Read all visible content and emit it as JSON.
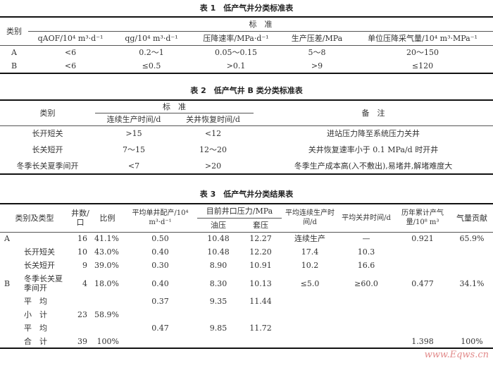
{
  "table1": {
    "title": "表 1　低产气井分类标准表",
    "category_header": "类别",
    "group_header": "标　准",
    "columns": [
      "qAOF/10⁴ m³·d⁻¹",
      "qg/10⁴ m³·d⁻¹",
      "压降速率/MPa·d⁻¹",
      "生产压差/MPa",
      "单位压降采气量/10⁴ m³·MPa⁻¹"
    ],
    "rows": [
      [
        "A",
        "<6",
        "0.2～1",
        "0.05～0.15",
        "5～8",
        "20～150"
      ],
      [
        "B",
        "<6",
        "≤0.5",
        ">0.1",
        ">9",
        "≤120"
      ]
    ]
  },
  "table2": {
    "title": "表 2　低产气井 B 类分类标准表",
    "category_header": "类别",
    "group_header": "标　准",
    "columns": [
      "连续生产时间/d",
      "关井恢复时间/d"
    ],
    "remark_header": "备　注",
    "rows": [
      [
        "长开短关",
        ">15",
        "<12",
        "进站压力降至系统压力关井"
      ],
      [
        "长关短开",
        "7～15",
        "12～20",
        "关井恢复速率小于 0.1 MPa/d 时开井"
      ],
      [
        "冬季长关夏季间开",
        "<7",
        ">20",
        "冬季生产成本高(入不敷出),易堵井,解堵难度大"
      ]
    ]
  },
  "table3": {
    "title": "表 3　低产气井分类结果表",
    "headers": {
      "type": "类别及类型",
      "count": "井数/口",
      "ratio": "比例",
      "avg_alloc": "平均单井配产/10⁴ m³·d⁻¹",
      "pressure": "目前井口压力/MPa",
      "tubing": "油压",
      "casing": "套压",
      "prod_time": "平均连续生产时间/d",
      "shut_time": "平均关井时间/d",
      "cum": "历年累计产气量/10⁸ m³",
      "contrib": "气量贡献"
    },
    "rows": [
      {
        "cls": "A",
        "type": "",
        "count": "16",
        "ratio": "41.1%",
        "alloc": "0.50",
        "tubing": "10.48",
        "casing": "12.27",
        "prod": "连续生产",
        "shut": "—",
        "cum": "0.921",
        "contrib": "65.9%"
      },
      {
        "cls": "",
        "type": "长开短关",
        "count": "10",
        "ratio": "43.0%",
        "alloc": "0.40",
        "tubing": "10.48",
        "casing": "12.20",
        "prod": "17.4",
        "shut": "10.3",
        "cum": "",
        "contrib": ""
      },
      {
        "cls": "",
        "type": "长关短开",
        "count": "9",
        "ratio": "39.0%",
        "alloc": "0.30",
        "tubing": "8.90",
        "casing": "10.91",
        "prod": "10.2",
        "shut": "16.6",
        "cum": "",
        "contrib": ""
      },
      {
        "cls": "B",
        "type": "冬季长关夏季间开",
        "count": "4",
        "ratio": "18.0%",
        "alloc": "0.40",
        "tubing": "8.30",
        "casing": "10.13",
        "prod": "≤5.0",
        "shut": "≥60.0",
        "cum": "0.477",
        "contrib": "34.1%"
      },
      {
        "cls": "",
        "type": "平　均",
        "count": "",
        "ratio": "",
        "alloc": "0.37",
        "tubing": "9.35",
        "casing": "11.44",
        "prod": "",
        "shut": "",
        "cum": "",
        "contrib": ""
      },
      {
        "cls": "",
        "type": "小　计",
        "count": "23",
        "ratio": "58.9%",
        "alloc": "",
        "tubing": "",
        "casing": "",
        "prod": "",
        "shut": "",
        "cum": "",
        "contrib": ""
      },
      {
        "cls": "",
        "type": "平　均",
        "count": "",
        "ratio": "",
        "alloc": "0.47",
        "tubing": "9.85",
        "casing": "11.72",
        "prod": "",
        "shut": "",
        "cum": "",
        "contrib": ""
      },
      {
        "cls": "",
        "type": "合　计",
        "count": "39",
        "ratio": "100%",
        "alloc": "",
        "tubing": "",
        "casing": "",
        "prod": "",
        "shut": "",
        "cum": "1.398",
        "contrib": "100%"
      }
    ]
  },
  "watermark": "www.Eqws.cn"
}
